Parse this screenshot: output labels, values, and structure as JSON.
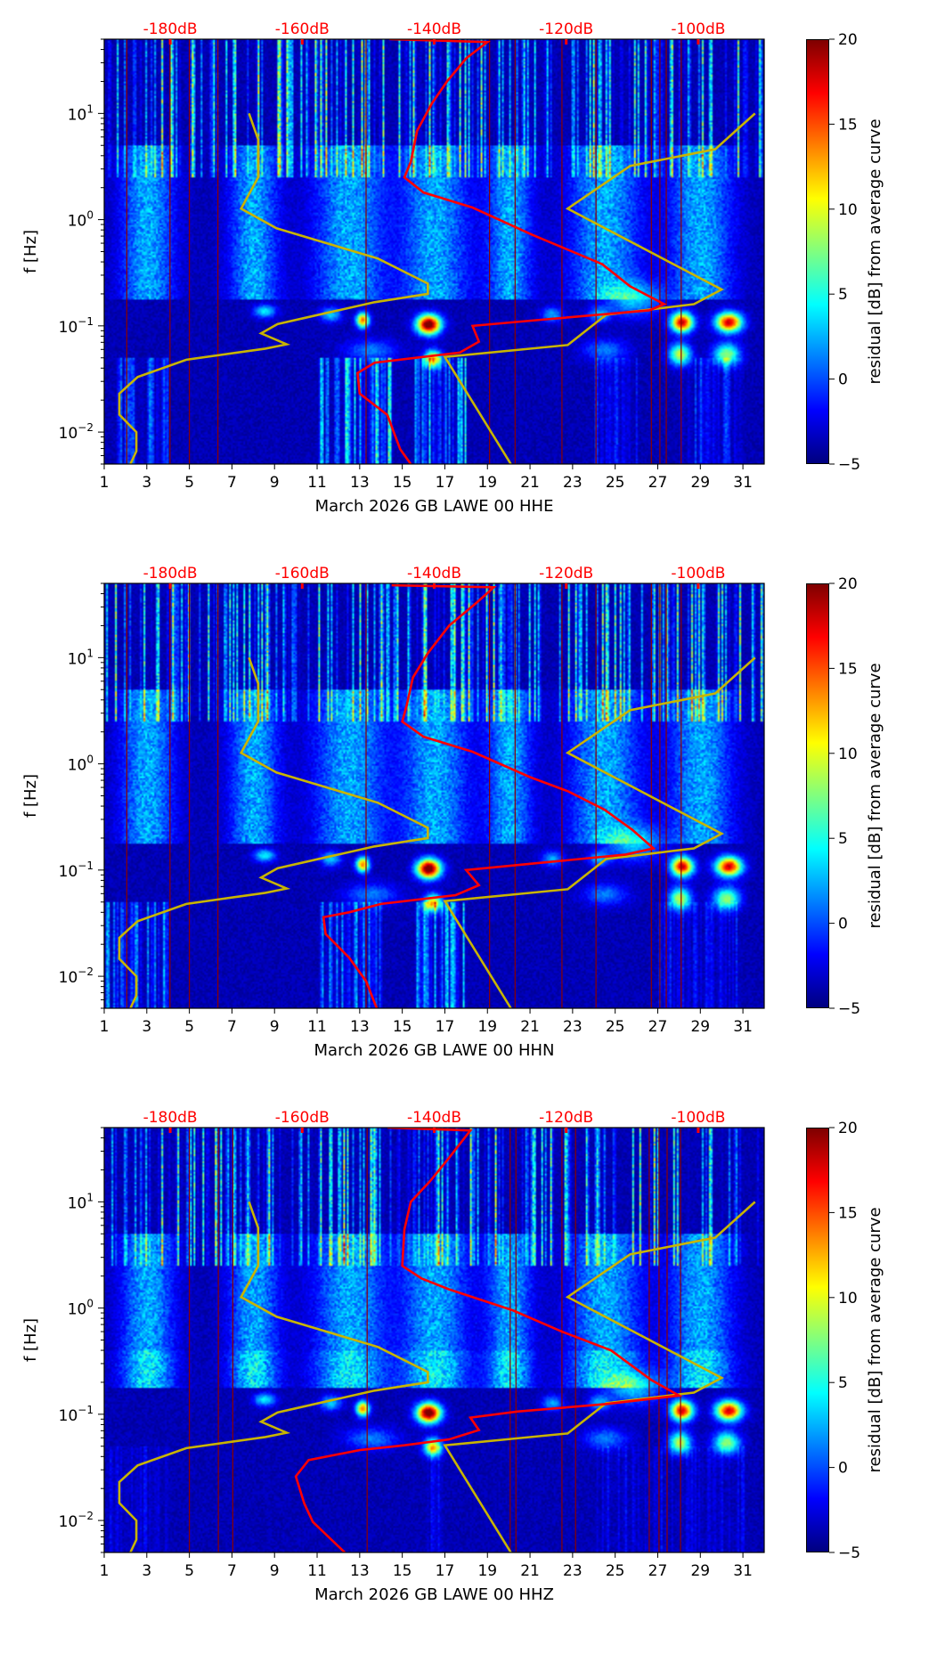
{
  "chart_data": {
    "type": "heatmap",
    "title": "",
    "x_axis": {
      "range": [
        1,
        32
      ],
      "ticks": [
        1,
        3,
        5,
        7,
        9,
        11,
        13,
        15,
        17,
        19,
        21,
        23,
        25,
        27,
        29,
        31
      ],
      "tick_labels": [
        "1",
        "3",
        "5",
        "7",
        "9",
        "11",
        "13",
        "15",
        "17",
        "19",
        "21",
        "23",
        "25",
        "27",
        "29",
        "31"
      ]
    },
    "y_axis": {
      "label": "f [Hz]",
      "scale": "log",
      "range": [
        0.005,
        50
      ],
      "ticks": [
        10,
        1,
        0.1,
        0.01
      ],
      "tick_labels": [
        {
          "base": "10",
          "exp": "1"
        },
        {
          "base": "10",
          "exp": "0"
        },
        {
          "base": "10",
          "exp": "−1"
        },
        {
          "base": "10",
          "exp": "−2"
        }
      ]
    },
    "top_axis": {
      "ticks_day": [
        4.1,
        10.3,
        16.5,
        22.7,
        28.9
      ],
      "tick_labels": [
        "-180dB",
        "-160dB",
        "-140dB",
        "-120dB",
        "-100dB"
      ],
      "color": "#ff0000"
    },
    "colorbar": {
      "label": "residual [dB] from average curve",
      "range": [
        -5,
        20
      ],
      "ticks": [
        20,
        15,
        10,
        5,
        0,
        -5
      ],
      "tick_labels": [
        "20",
        "15",
        "10",
        "5",
        "0",
        "−5"
      ],
      "colormap": "jet"
    },
    "noise_model_color": "#c8b400",
    "psd_color": "#ff0000",
    "marker_line_color": "#8b0000",
    "noise_models": [
      {
        "name": "low-noise-model",
        "points": [
          [
            7.8,
            10
          ],
          [
            8.23,
            5.7
          ],
          [
            8.23,
            2.5
          ],
          [
            7.43,
            1.27
          ],
          [
            9.09,
            0.83
          ],
          [
            13.86,
            0.43
          ],
          [
            16.2,
            0.25
          ],
          [
            16.2,
            0.2
          ],
          [
            13.7,
            0.167
          ],
          [
            11.57,
            0.134
          ],
          [
            9.14,
            0.104
          ],
          [
            8.37,
            0.085
          ],
          [
            9.57,
            0.067
          ],
          [
            8.57,
            0.061
          ],
          [
            4.86,
            0.048
          ],
          [
            2.57,
            0.033
          ],
          [
            1.71,
            0.023
          ],
          [
            1.71,
            0.0146
          ],
          [
            2.51,
            0.01
          ],
          [
            2.51,
            0.0066
          ],
          [
            2.23,
            0.005
          ]
        ]
      },
      {
        "name": "high-noise-model",
        "points": [
          [
            31.57,
            10
          ],
          [
            29.7,
            4.6
          ],
          [
            25.7,
            3.2
          ],
          [
            22.77,
            1.27
          ],
          [
            30,
            0.22
          ],
          [
            28.7,
            0.16
          ],
          [
            24.57,
            0.127
          ],
          [
            22.77,
            0.066
          ],
          [
            17,
            0.051
          ],
          [
            20.1,
            0.005
          ]
        ]
      }
    ],
    "panels": [
      {
        "xlabel": "March 2026 GB LAWE 00 HHE",
        "marker_days": [
          2.06,
          4.09,
          5.0,
          6.34,
          13.3,
          19.1,
          20.3,
          22.5,
          24.1,
          26.7,
          27.1,
          27.4,
          28.1
        ],
        "psd": [
          [
            14.4,
            50
          ],
          [
            19,
            47
          ],
          [
            18,
            33
          ],
          [
            17.1,
            20
          ],
          [
            16.4,
            12.5
          ],
          [
            15.7,
            6.9
          ],
          [
            15.4,
            3.5
          ],
          [
            15.1,
            2.5
          ],
          [
            16,
            1.8
          ],
          [
            18.3,
            1.3
          ],
          [
            21.1,
            0.72
          ],
          [
            22.6,
            0.54
          ],
          [
            24.4,
            0.38
          ],
          [
            25.7,
            0.236
          ],
          [
            27.3,
            0.16
          ],
          [
            26.6,
            0.14
          ],
          [
            21.7,
            0.115
          ],
          [
            18.3,
            0.1
          ],
          [
            18.6,
            0.071
          ],
          [
            17.7,
            0.056
          ],
          [
            13.7,
            0.045
          ],
          [
            12.9,
            0.036
          ],
          [
            13,
            0.023
          ],
          [
            14.3,
            0.0145
          ],
          [
            14.9,
            0.0069
          ],
          [
            15.4,
            0.005
          ]
        ]
      },
      {
        "xlabel": "March 2026 GB LAWE 00 HHN",
        "marker_days": [
          2.06,
          4.09,
          5.0,
          6.34,
          13.3,
          19.1,
          20.3,
          22.5,
          24.1,
          26.7,
          27.1,
          27.4,
          28.1
        ],
        "psd": [
          [
            14.5,
            48
          ],
          [
            19.3,
            46
          ],
          [
            18.5,
            33
          ],
          [
            17.2,
            20
          ],
          [
            16.2,
            11
          ],
          [
            15.5,
            6.5
          ],
          [
            15.2,
            3.5
          ],
          [
            15.0,
            2.5
          ],
          [
            16,
            1.8
          ],
          [
            18.3,
            1.3
          ],
          [
            21,
            0.75
          ],
          [
            22.8,
            0.55
          ],
          [
            24.5,
            0.37
          ],
          [
            25.8,
            0.24
          ],
          [
            26.8,
            0.16
          ],
          [
            25.5,
            0.14
          ],
          [
            21.5,
            0.117
          ],
          [
            18,
            0.1
          ],
          [
            18.6,
            0.072
          ],
          [
            17.5,
            0.058
          ],
          [
            14,
            0.048
          ],
          [
            12.5,
            0.04
          ],
          [
            11.3,
            0.036
          ],
          [
            11.4,
            0.025
          ],
          [
            12.5,
            0.015
          ],
          [
            13.3,
            0.009
          ],
          [
            13.8,
            0.005
          ]
        ]
      },
      {
        "xlabel": "March 2026 GB LAWE 00 HHZ",
        "marker_days": [
          5.0,
          6.36,
          7.04,
          13.35,
          20.07,
          20.34,
          22.5,
          23.14,
          26.6,
          27.06,
          27.44,
          28.07
        ],
        "psd": [
          [
            14.3,
            50
          ],
          [
            18.2,
            47
          ],
          [
            17.2,
            26
          ],
          [
            16.3,
            15.6
          ],
          [
            15.4,
            10
          ],
          [
            15.1,
            5.5
          ],
          [
            15,
            2.5
          ],
          [
            15.9,
            1.9
          ],
          [
            17.2,
            1.5
          ],
          [
            20.2,
            0.95
          ],
          [
            22.5,
            0.6
          ],
          [
            24.8,
            0.4
          ],
          [
            26.7,
            0.21
          ],
          [
            28,
            0.15
          ],
          [
            24.6,
            0.125
          ],
          [
            20.4,
            0.106
          ],
          [
            18.2,
            0.093
          ],
          [
            18.6,
            0.071
          ],
          [
            17.2,
            0.058
          ],
          [
            15.1,
            0.051
          ],
          [
            13,
            0.046
          ],
          [
            10.6,
            0.037
          ],
          [
            10,
            0.026
          ],
          [
            10.4,
            0.0144
          ],
          [
            10.8,
            0.0097
          ],
          [
            12.3,
            0.005
          ]
        ]
      }
    ]
  }
}
